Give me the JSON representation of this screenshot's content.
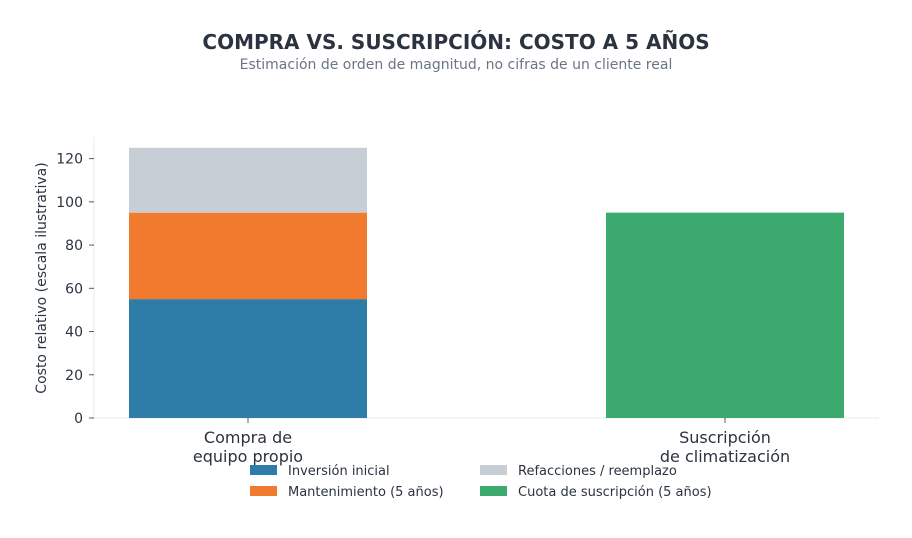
{
  "chart_data": {
    "type": "bar",
    "stacked": true,
    "title": "COMPRA VS. SUSCRIPCIÓN: COSTO A 5 AÑOS",
    "subtitle": "Estimación de orden de magnitud, no cifras de un cliente real",
    "ylabel": "Costo relativo (escala ilustrativa)",
    "xlabel": "",
    "ylim": [
      0,
      130
    ],
    "yticks": [
      0,
      20,
      40,
      60,
      80,
      100,
      120
    ],
    "categories": [
      [
        "Compra de",
        "equipo propio"
      ],
      [
        "Suscripción",
        "de climatización"
      ]
    ],
    "series": [
      {
        "name": "Inversión inicial",
        "color": "#2e7ca8",
        "values": [
          55,
          0
        ]
      },
      {
        "name": "Mantenimiento (5 años)",
        "color": "#f27a2e",
        "values": [
          40,
          0
        ]
      },
      {
        "name": "Refacciones / reemplazo",
        "color": "#c8ced6",
        "values": [
          30,
          0
        ]
      },
      {
        "name": "Cuota de suscripción (5 años)",
        "color": "#3ca96f",
        "values": [
          0,
          95
        ]
      }
    ],
    "grid": false,
    "legend_position": "bottom"
  }
}
